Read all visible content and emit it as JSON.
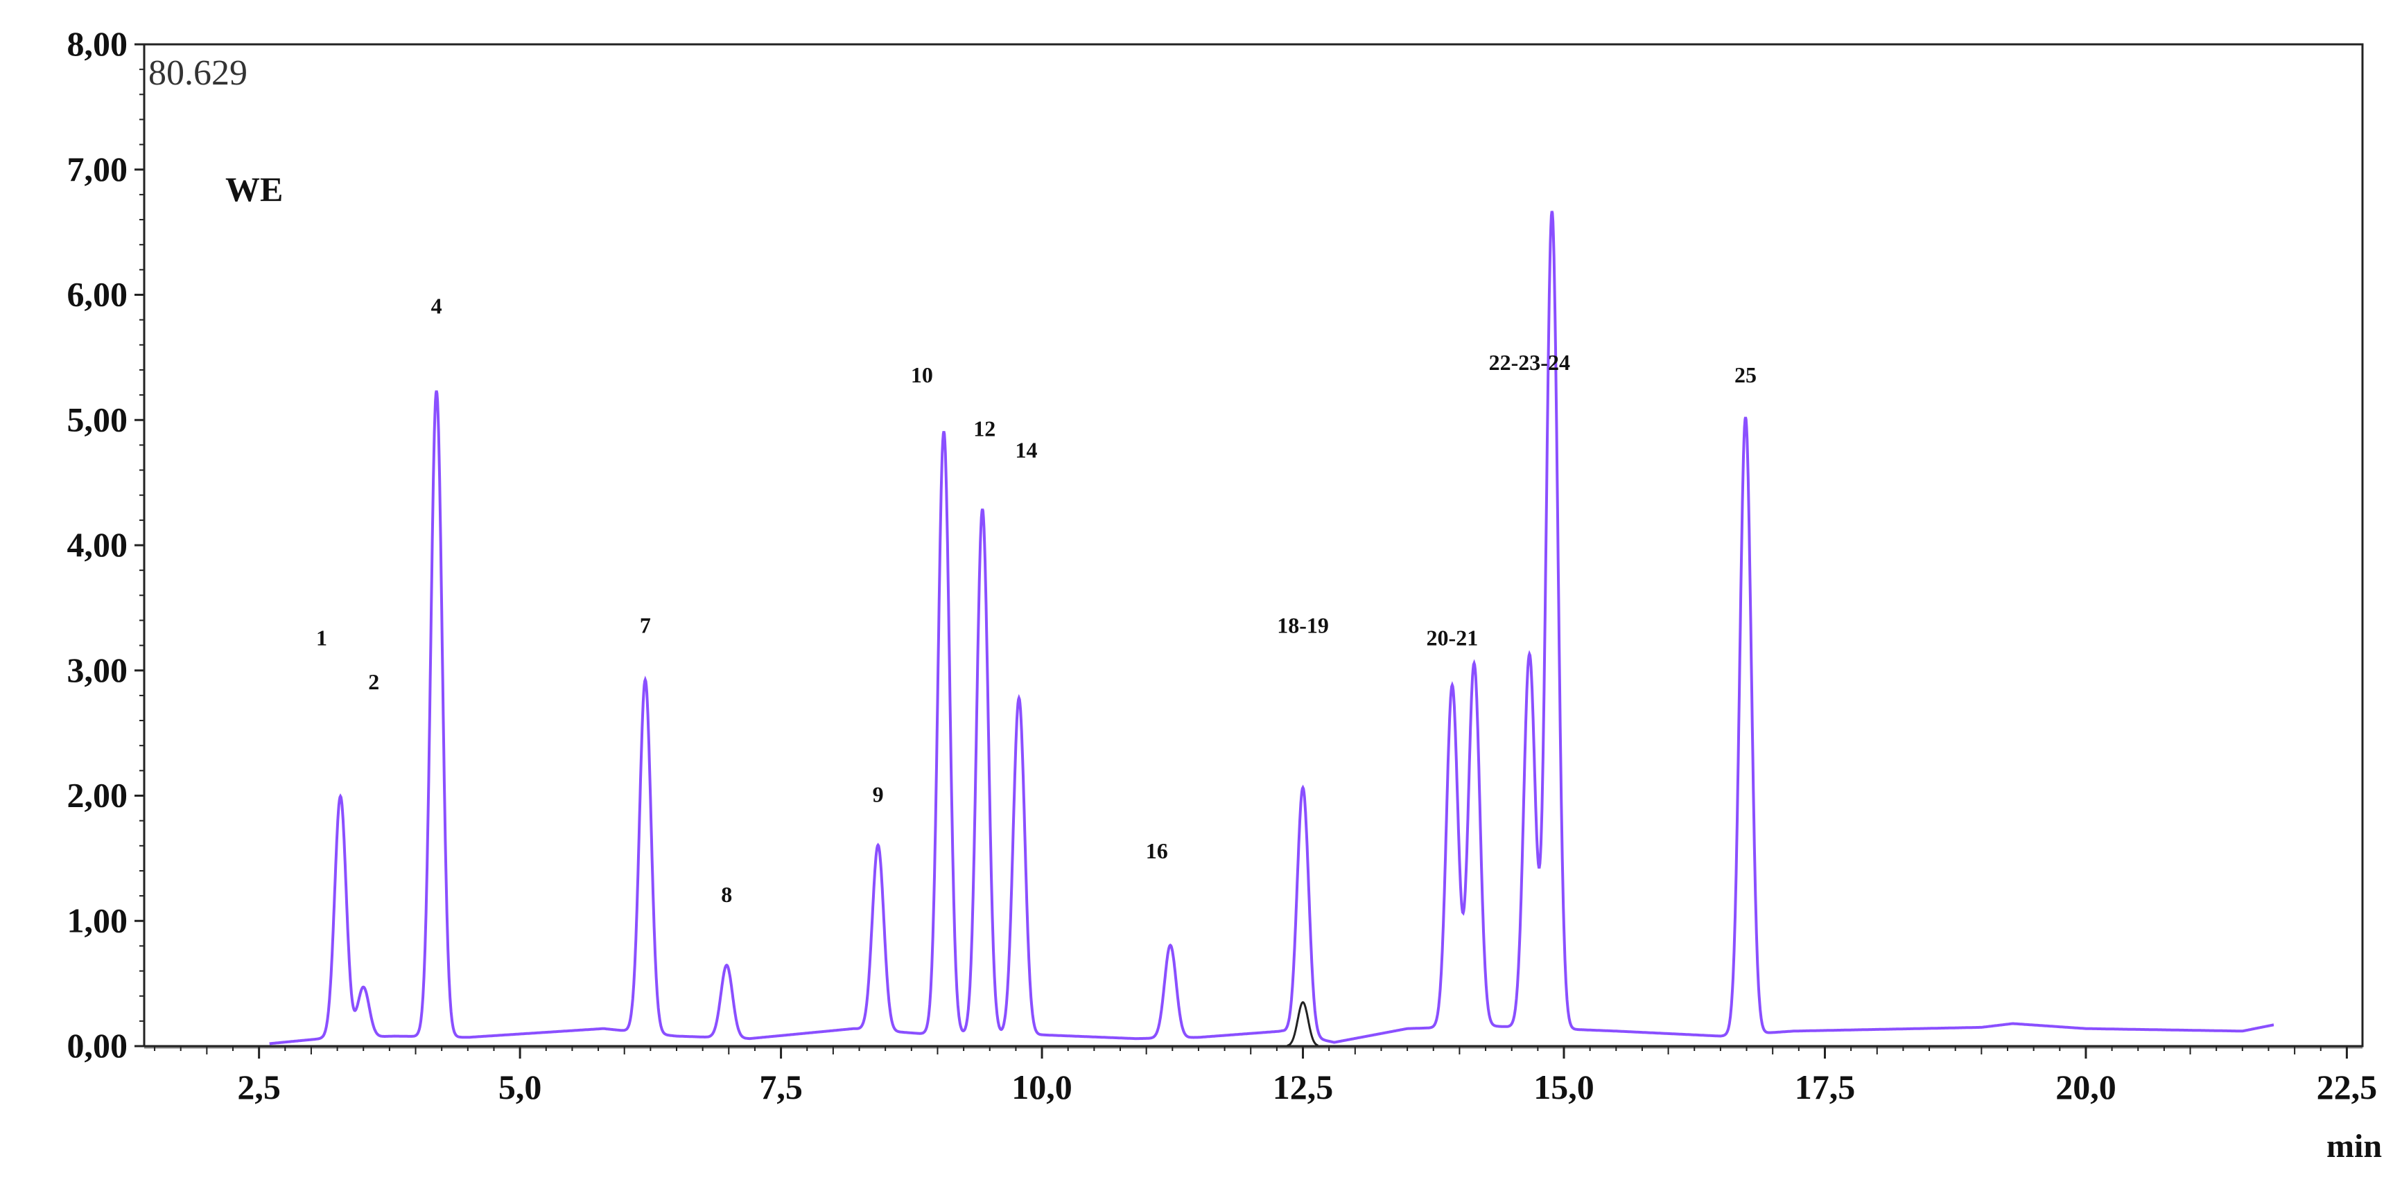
{
  "chart_data": {
    "type": "line",
    "corner_value": "80.629",
    "sample_label": "WE",
    "x_unit": "min",
    "xlim": [
      1.4,
      22.65
    ],
    "ylim": [
      0,
      8
    ],
    "x_ticks": [
      2.5,
      5.0,
      7.5,
      10.0,
      12.5,
      15.0,
      17.5,
      20.0,
      22.5
    ],
    "x_tick_labels": [
      "2,5",
      "5,0",
      "7,5",
      "10,0",
      "12,5",
      "15,0",
      "17,5",
      "20,0",
      "22,5"
    ],
    "y_ticks": [
      0,
      1,
      2,
      3,
      4,
      5,
      6,
      7,
      8
    ],
    "y_tick_labels": [
      "0,00",
      "1,00",
      "2,00",
      "3,00",
      "4,00",
      "5,00",
      "6,00",
      "7,00",
      "8,00"
    ],
    "trace_color": "#8a4fff",
    "baseline_color": "#888888",
    "x_range": [
      2.6,
      21.8
    ],
    "baseline": [
      [
        2.6,
        0.02
      ],
      [
        3.1,
        0.06
      ],
      [
        3.8,
        0.08
      ],
      [
        4.5,
        0.07
      ],
      [
        5.8,
        0.14
      ],
      [
        6.5,
        0.08
      ],
      [
        7.2,
        0.06
      ],
      [
        8.2,
        0.14
      ],
      [
        9.0,
        0.09
      ],
      [
        10.0,
        0.09
      ],
      [
        10.9,
        0.06
      ],
      [
        11.5,
        0.07
      ],
      [
        12.3,
        0.12
      ],
      [
        12.8,
        0.03
      ],
      [
        13.5,
        0.14
      ],
      [
        14.3,
        0.16
      ],
      [
        15.5,
        0.12
      ],
      [
        16.5,
        0.08
      ],
      [
        17.2,
        0.12
      ],
      [
        19.0,
        0.15
      ],
      [
        19.3,
        0.18
      ],
      [
        20.0,
        0.14
      ],
      [
        21.5,
        0.12
      ],
      [
        21.8,
        0.17
      ]
    ],
    "peaks": [
      {
        "label": "1",
        "rt": 3.28,
        "height": 1.93,
        "label_y": 3.2
      },
      {
        "label": "2",
        "rt": 3.5,
        "height": 0.4,
        "label_y": 2.85
      },
      {
        "label": "4",
        "rt": 4.2,
        "height": 5.16,
        "label_y": 5.85
      },
      {
        "label": "7",
        "rt": 6.2,
        "height": 2.82,
        "label_y": 3.3
      },
      {
        "label": "8",
        "rt": 6.98,
        "height": 0.58,
        "label_y": 1.15
      },
      {
        "label": "9",
        "rt": 8.43,
        "height": 1.48,
        "label_y": 1.95
      },
      {
        "label": "10",
        "rt": 9.06,
        "height": 4.82,
        "label_y": 5.3
      },
      {
        "label": "12",
        "rt": 9.43,
        "height": 4.2,
        "label_y": 4.87
      },
      {
        "label": "14",
        "rt": 9.78,
        "height": 2.69,
        "label_y": 4.7
      },
      {
        "label": "16",
        "rt": 11.23,
        "height": 0.74,
        "label_y": 1.5
      },
      {
        "label": "18-19",
        "rt": 12.5,
        "height": 1.98,
        "label_y": 3.3
      },
      {
        "label": "20-21",
        "rt": 13.93,
        "height": 2.73,
        "label_y": 3.2
      },
      {
        "label": "",
        "rt": 14.14,
        "height": 2.9,
        "label_y": null
      },
      {
        "label": "22-23-24",
        "rt": 14.67,
        "height": 2.98,
        "label_y": 5.4
      },
      {
        "label": "",
        "rt": 14.88,
        "height": 4.57,
        "label_y": null
      },
      {
        "label": "",
        "rt": 14.9,
        "height": 2.05,
        "label_y": null
      },
      {
        "label": "25",
        "rt": 16.74,
        "height": 4.93,
        "label_y": 5.3
      }
    ],
    "peak_width": 0.055,
    "small_peak": {
      "rt": 12.5,
      "height": 0.35,
      "color": "#222222"
    }
  }
}
